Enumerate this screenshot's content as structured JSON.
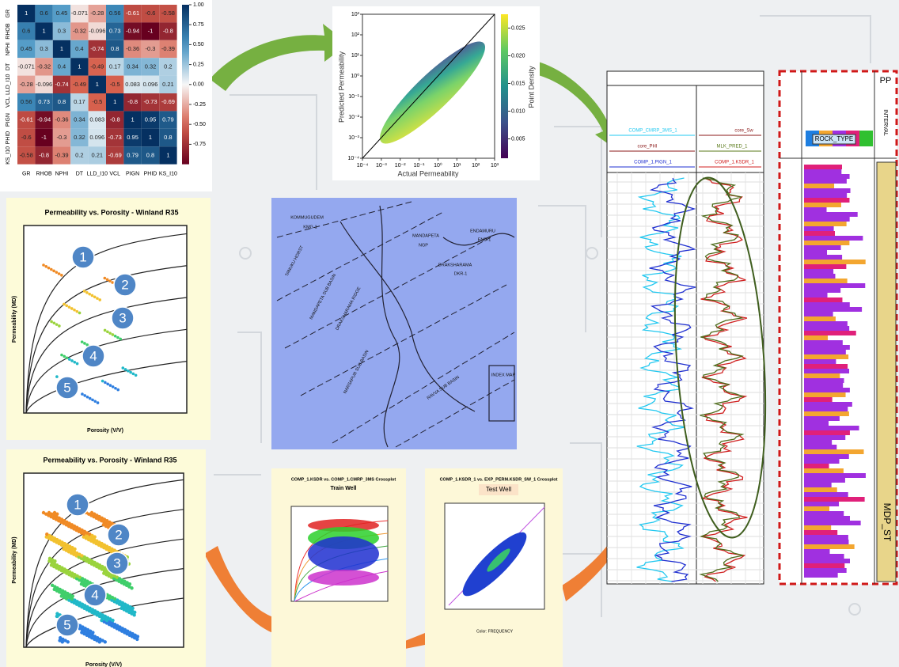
{
  "heatmap": {
    "labels": [
      "GR",
      "RHOB",
      "NPHI",
      "DT",
      "LLD_I10",
      "VCL",
      "PIGN",
      "PHID",
      "KS_I10"
    ],
    "matrix": [
      [
        1,
        0.6,
        0.45,
        -0.071,
        -0.28,
        0.56,
        -0.61,
        -0.6,
        -0.58
      ],
      [
        0.6,
        1,
        0.3,
        -0.32,
        -0.096,
        0.73,
        -0.94,
        -1,
        -0.8
      ],
      [
        0.45,
        0.3,
        1,
        0.4,
        -0.74,
        0.8,
        -0.36,
        -0.3,
        -0.39
      ],
      [
        -0.071,
        -0.32,
        0.4,
        1,
        -0.49,
        0.17,
        0.34,
        0.32,
        0.2
      ],
      [
        -0.28,
        -0.096,
        -0.74,
        -0.49,
        1,
        -0.5,
        0.083,
        0.096,
        0.21
      ],
      [
        0.56,
        0.73,
        0.8,
        0.17,
        -0.5,
        1,
        -0.8,
        -0.73,
        -0.69
      ],
      [
        -0.61,
        -0.94,
        -0.36,
        0.34,
        0.083,
        -0.8,
        1,
        0.95,
        0.79
      ],
      [
        -0.6,
        -1,
        -0.3,
        0.32,
        0.096,
        -0.73,
        0.95,
        1,
        0.8
      ],
      [
        -0.58,
        -0.8,
        -0.39,
        0.2,
        0.21,
        -0.69,
        0.79,
        0.8,
        1
      ]
    ],
    "colorbar_lim": [
      -1,
      1
    ],
    "colorbar_ticks": [
      {
        "value": 1,
        "label": "1.00"
      },
      {
        "value": 0.75,
        "label": "0.75"
      },
      {
        "value": 0.5,
        "label": "0.50"
      },
      {
        "value": 0.25,
        "label": "0.25"
      },
      {
        "value": 0,
        "label": "0.00"
      },
      {
        "value": -0.25,
        "label": "-0.25"
      },
      {
        "value": -0.5,
        "label": "-0.50"
      },
      {
        "value": -0.75,
        "label": "-0.75"
      }
    ]
  },
  "density_plot": {
    "x_label": "Actual Permeability",
    "y_label": "Predicted Permeability",
    "colorbar_label": "Point Density",
    "xlim": [
      0.0001,
      1000
    ],
    "ylim": [
      0.0001,
      1000
    ],
    "xticks": [
      {
        "value": 0.0001,
        "label": "10⁻⁴"
      },
      {
        "value": 0.001,
        "label": "10⁻³"
      },
      {
        "value": 0.01,
        "label": "10⁻²"
      },
      {
        "value": 0.1,
        "label": "10⁻¹"
      },
      {
        "value": 1,
        "label": "10⁰"
      },
      {
        "value": 10,
        "label": "10¹"
      },
      {
        "value": 100,
        "label": "10²"
      },
      {
        "value": 1000,
        "label": "10³"
      }
    ],
    "yticks": [
      {
        "value": 0.0001,
        "label": "10⁻⁴"
      },
      {
        "value": 0.001,
        "label": "10⁻³"
      },
      {
        "value": 0.01,
        "label": "10⁻²"
      },
      {
        "value": 0.1,
        "label": "10⁻¹"
      },
      {
        "value": 1,
        "label": "10⁰"
      },
      {
        "value": 10,
        "label": "10¹"
      },
      {
        "value": 100,
        "label": "10²"
      },
      {
        "value": 1000,
        "label": "10³"
      }
    ],
    "colorbar_lim": [
      0.0015,
      0.0275
    ],
    "colorbar_ticks": [
      0.005,
      {
        "value": 0.01,
        "label": "0.010"
      },
      0.015,
      {
        "value": 0.02,
        "label": "0.020"
      },
      0.025
    ]
  },
  "winland_top": {
    "title": "Permeability vs. Porosity - Winland R35",
    "x_label": "Porosity (V/V)",
    "y_label": "Permeability (MD)",
    "zones": [
      "1",
      "2",
      "3",
      "4",
      "5"
    ]
  },
  "winland_bottom": {
    "title": "Permeability vs. Porosity - Winland R35",
    "x_label": "Porosity (V/V)",
    "y_label": "Permeability (MD)",
    "zones": [
      "1",
      "2",
      "3",
      "4",
      "5"
    ]
  },
  "map": {
    "labels": [
      "KOMMUGUDEM",
      "KMG-1",
      "MANDAPETA",
      "NGP",
      "ENDAMURU",
      "END-1",
      "DRAKSHARAMA",
      "DKR-1",
      "TANUKU HORST",
      "MANDAPETA SUB BASIN",
      "DRAKSHARAMA RIDGE",
      "NARSAPUR SUB BASIN",
      "RAVVA SUB BASIN",
      "INDEX MAP"
    ]
  },
  "train_crossplot": {
    "title": "COMP_1.KSDR vs. COMP_1.CMRP_3MS Crossplot",
    "subtitle": "Train Well"
  },
  "test_crossplot": {
    "title": "COMP_1.KSDR_1 vs. EXP_PERM.KSDR_SW_1 Crossplot",
    "subtitle": "Test Well",
    "color_label": "Color: FREQUENCY"
  },
  "log_view": {
    "curves": [
      "COMP_CMRP_3MS_1",
      "core_PHI",
      "COMP_1.PIGN_1",
      "core_Sw",
      "MLK_PRED_1",
      "COMP_1.KSDR_1"
    ],
    "rock_type": "ROCK_TYPE",
    "pp": "PP",
    "interval": "INTERVAL",
    "zone": "MDP_ST"
  }
}
